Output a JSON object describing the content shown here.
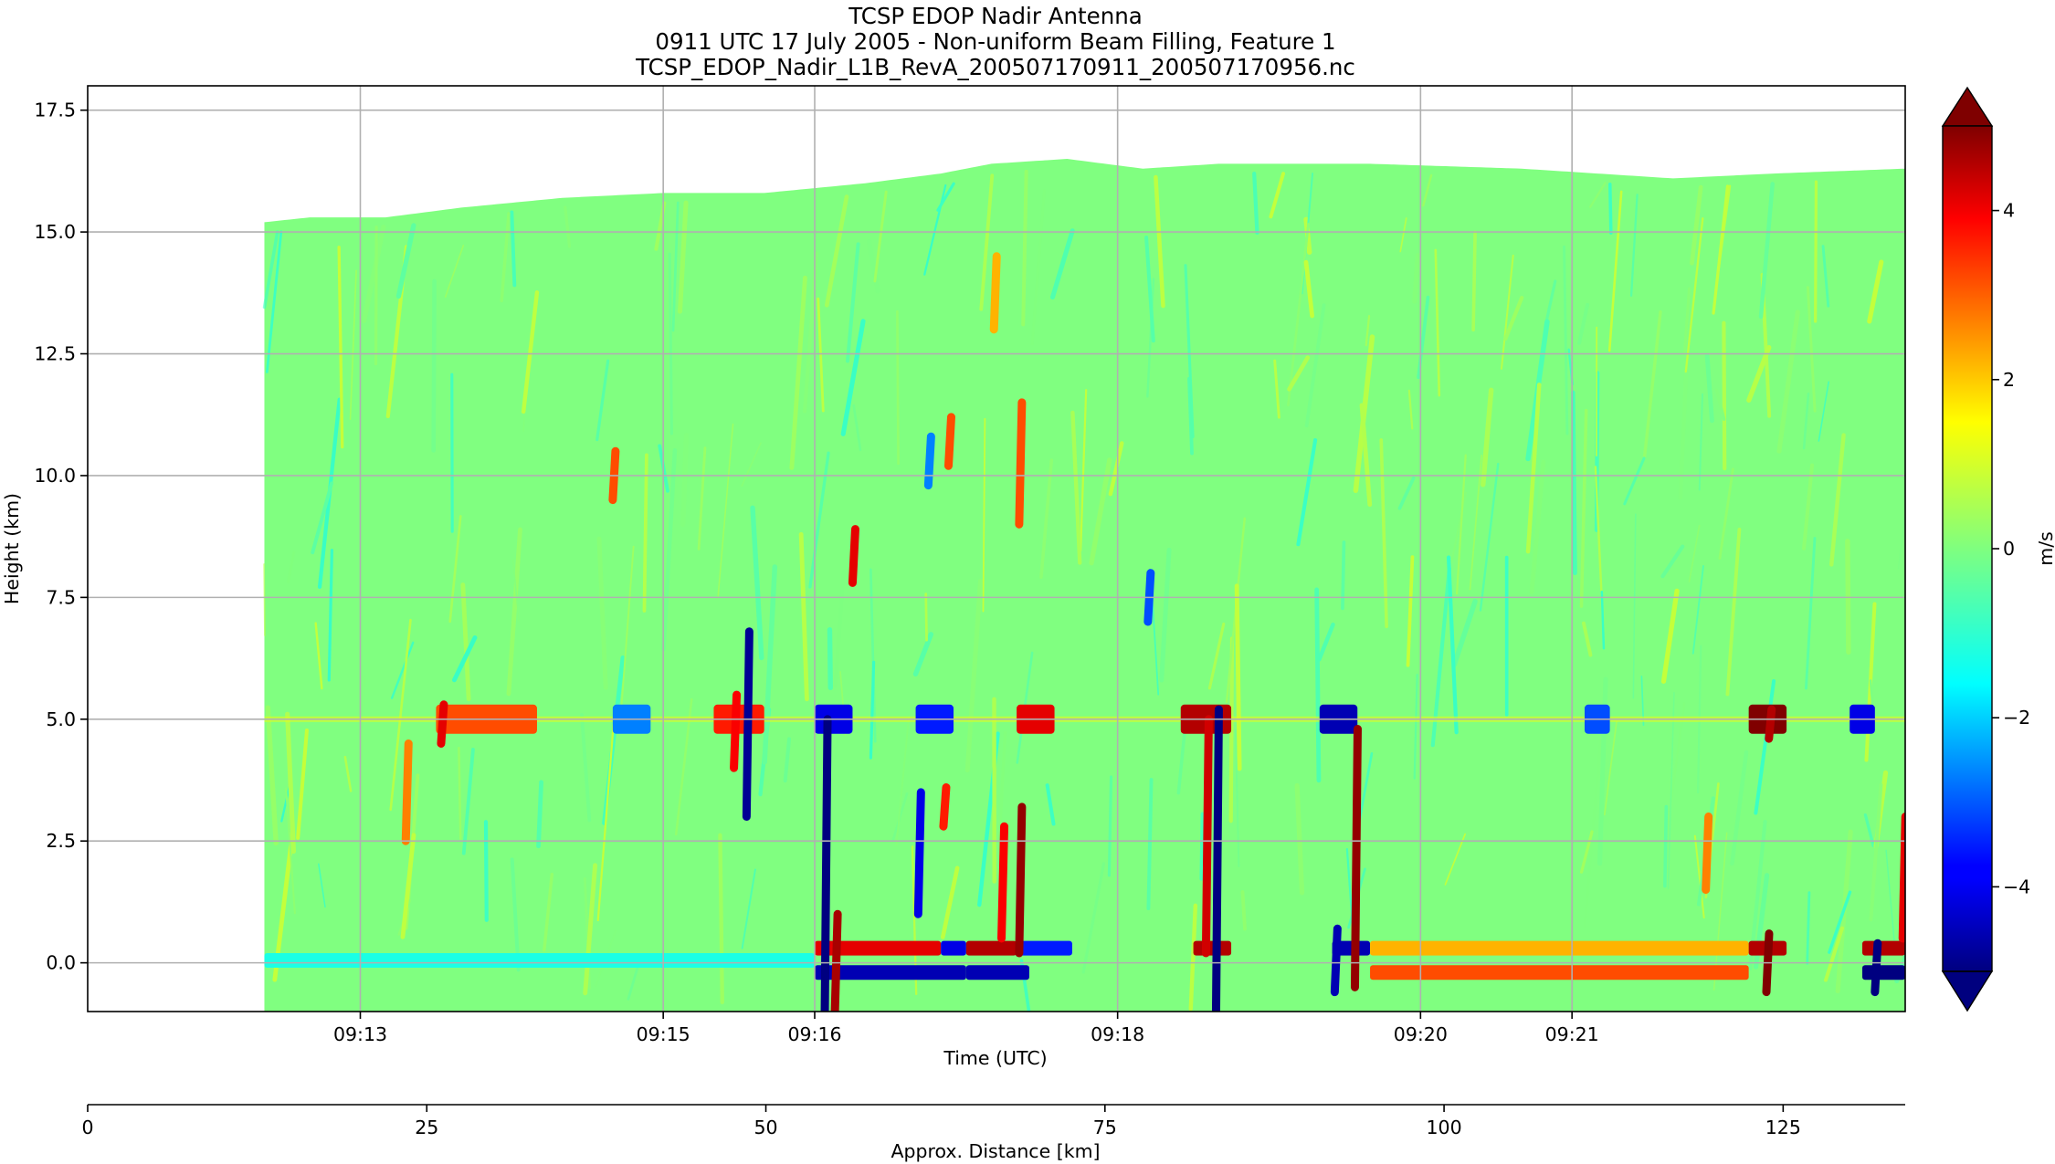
{
  "chart_data": {
    "type": "heatmap",
    "title_lines": [
      "TCSP EDOP Nadir Antenna",
      "0911 UTC 17 July 2005 - Non-uniform Beam Filling, Feature 1",
      "TCSP_EDOP_Nadir_L1B_RevA_200507170911_200507170956.nc"
    ],
    "xlabel": "Time (UTC)",
    "ylabel": "Height (km)",
    "x_ticks": [
      {
        "value": 780,
        "label": "09:13"
      },
      {
        "value": 900,
        "label": "09:15"
      },
      {
        "value": 960,
        "label": "09:16"
      },
      {
        "value": 1080,
        "label": "09:18"
      },
      {
        "value": 1200,
        "label": "09:20"
      },
      {
        "value": 1260,
        "label": "09:21"
      }
    ],
    "xlim": [
      672,
      1392
    ],
    "y_ticks": [
      0.0,
      2.5,
      5.0,
      7.5,
      10.0,
      12.5,
      15.0,
      17.5
    ],
    "y_tick_labels": [
      "0.0",
      "2.5",
      "5.0",
      "7.5",
      "10.0",
      "12.5",
      "15.0",
      "17.5"
    ],
    "ylim": [
      -1.0,
      18.0
    ],
    "grid": true,
    "data_start_time": 742,
    "cloud_top_km": [
      {
        "t": 742,
        "h": 15.2
      },
      {
        "t": 760,
        "h": 15.3
      },
      {
        "t": 790,
        "h": 15.3
      },
      {
        "t": 820,
        "h": 15.5
      },
      {
        "t": 860,
        "h": 15.7
      },
      {
        "t": 900,
        "h": 15.8
      },
      {
        "t": 940,
        "h": 15.8
      },
      {
        "t": 980,
        "h": 16.0
      },
      {
        "t": 1010,
        "h": 16.2
      },
      {
        "t": 1030,
        "h": 16.4
      },
      {
        "t": 1060,
        "h": 16.5
      },
      {
        "t": 1090,
        "h": 16.3
      },
      {
        "t": 1120,
        "h": 16.4
      },
      {
        "t": 1180,
        "h": 16.4
      },
      {
        "t": 1240,
        "h": 16.3
      },
      {
        "t": 1300,
        "h": 16.1
      },
      {
        "t": 1340,
        "h": 16.2
      },
      {
        "t": 1392,
        "h": 16.3
      }
    ],
    "features": [
      {
        "t": 933,
        "h0": 3.0,
        "h1": 6.8,
        "v": -4.8
      },
      {
        "t": 928,
        "h0": 4.0,
        "h1": 5.5,
        "v": 3.8
      },
      {
        "t": 964,
        "h0": -1.0,
        "h1": 5.0,
        "v": -5.0
      },
      {
        "t": 968,
        "h0": -1.0,
        "h1": 1.0,
        "v": 4.6
      },
      {
        "t": 975,
        "h0": 7.8,
        "h1": 8.9,
        "v": 4.0
      },
      {
        "t": 1001,
        "h0": 1.0,
        "h1": 3.5,
        "v": -4.0
      },
      {
        "t": 1011,
        "h0": 2.8,
        "h1": 3.6,
        "v": 3.5
      },
      {
        "t": 1041,
        "h0": 0.2,
        "h1": 3.2,
        "v": 4.8
      },
      {
        "t": 1034,
        "h0": 0.5,
        "h1": 2.8,
        "v": 3.8
      },
      {
        "t": 1119,
        "h0": -1.0,
        "h1": 5.2,
        "v": -5.0
      },
      {
        "t": 1115,
        "h0": 0.2,
        "h1": 5.0,
        "v": 4.2
      },
      {
        "t": 1174,
        "h0": -0.5,
        "h1": 4.8,
        "v": 4.8
      },
      {
        "t": 1166,
        "h0": -0.6,
        "h1": 0.7,
        "v": -4.5
      },
      {
        "t": 1041,
        "h0": 9.0,
        "h1": 11.5,
        "v": 3.0
      },
      {
        "t": 1031,
        "h0": 13.0,
        "h1": 14.5,
        "v": 2.0
      },
      {
        "t": 880,
        "h0": 9.5,
        "h1": 10.5,
        "v": 3.0
      },
      {
        "t": 1013,
        "h0": 10.2,
        "h1": 11.2,
        "v": 3.0
      },
      {
        "t": 1005,
        "h0": 9.8,
        "h1": 10.8,
        "v": -2.5
      },
      {
        "t": 1092,
        "h0": 7.0,
        "h1": 8.0,
        "v": -3.0
      },
      {
        "t": 1313,
        "h0": 1.5,
        "h1": 3.0,
        "v": 2.5
      },
      {
        "t": 1337,
        "h0": -0.6,
        "h1": 0.6,
        "v": 5.0
      },
      {
        "t": 1338,
        "h0": 4.6,
        "h1": 5.2,
        "v": 4.5
      },
      {
        "t": 1380,
        "h0": -0.6,
        "h1": 0.4,
        "v": -5.0
      },
      {
        "t": 1391,
        "h0": 0.5,
        "h1": 3.0,
        "v": 4.0
      },
      {
        "t": 812,
        "h0": 4.5,
        "h1": 5.3,
        "v": 4.0
      },
      {
        "t": 798,
        "h0": 2.5,
        "h1": 4.5,
        "v": 2.5
      }
    ],
    "bright_band": [
      {
        "t0": 960,
        "t1": 1010,
        "h": 0.3,
        "v": 4.0
      },
      {
        "t0": 1010,
        "t1": 1020,
        "h": 0.3,
        "v": -4.0
      },
      {
        "t0": 1020,
        "t1": 1040,
        "h": 0.3,
        "v": 4.5
      },
      {
        "t0": 1040,
        "t1": 1062,
        "h": 0.3,
        "v": -3.5
      },
      {
        "t0": 960,
        "t1": 1020,
        "h": -0.2,
        "v": -4.5
      },
      {
        "t0": 1020,
        "t1": 1045,
        "h": -0.2,
        "v": -4.5
      },
      {
        "t0": 1110,
        "t1": 1125,
        "h": 0.3,
        "v": 4.5
      },
      {
        "t0": 1165,
        "t1": 1180,
        "h": 0.3,
        "v": -4.5
      },
      {
        "t0": 1180,
        "t1": 1330,
        "h": 0.3,
        "v": 2.0
      },
      {
        "t0": 1180,
        "t1": 1330,
        "h": -0.2,
        "v": 3.0
      },
      {
        "t0": 1330,
        "t1": 1345,
        "h": 0.3,
        "v": 4.5
      },
      {
        "t0": 1375,
        "t1": 1392,
        "h": 0.3,
        "v": 4.5
      },
      {
        "t0": 1375,
        "t1": 1392,
        "h": -0.2,
        "v": -5.0
      },
      {
        "t0": 742,
        "t1": 960,
        "h": 0.05,
        "v": -1.0
      }
    ],
    "layer_5km": [
      {
        "t0": 810,
        "t1": 850,
        "v": 3.0
      },
      {
        "t0": 880,
        "t1": 895,
        "v": -2.5
      },
      {
        "t0": 920,
        "t1": 940,
        "v": 3.5
      },
      {
        "t0": 960,
        "t1": 975,
        "v": -4.0
      },
      {
        "t0": 1000,
        "t1": 1015,
        "v": -3.5
      },
      {
        "t0": 1040,
        "t1": 1055,
        "v": 4.0
      },
      {
        "t0": 1105,
        "t1": 1125,
        "v": 4.5
      },
      {
        "t0": 1160,
        "t1": 1175,
        "v": -4.5
      },
      {
        "t0": 1265,
        "t1": 1275,
        "v": -3.0
      },
      {
        "t0": 1330,
        "t1": 1345,
        "v": 5.0
      },
      {
        "t0": 1370,
        "t1": 1380,
        "v": -4.0
      }
    ],
    "colorbar": {
      "label": "m/s",
      "vmin": -5.0,
      "vmax": 5.0,
      "ticks": [
        -4,
        -2,
        0,
        2,
        4
      ],
      "tick_labels": [
        "−4",
        "−2",
        "0",
        "2",
        "4"
      ],
      "extend": "both",
      "colormap": "jet"
    },
    "secondary_x_axis": {
      "xlabel": "Approx. Distance [km]",
      "ticks": [
        0,
        25,
        50,
        75,
        100,
        125
      ],
      "tick_labels": [
        "0",
        "25",
        "50",
        "75",
        "100",
        "125"
      ],
      "xlim": [
        0,
        134
      ]
    }
  }
}
